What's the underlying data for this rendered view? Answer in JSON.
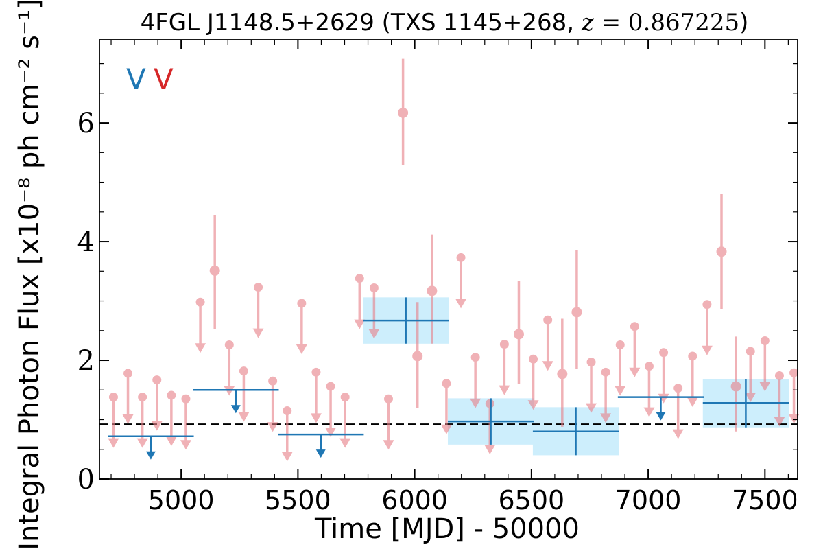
{
  "chart_data": {
    "type": "scatter",
    "title_main": "4FGL J1148.5+2629 (TXS 1145+268, ",
    "title_z_var": "z",
    "title_z_value": " = 0.867225",
    "title_close": ")",
    "xlabel": "Time [MJD] - 50000",
    "ylabel": "Integral Photon Flux [x10⁻⁸ ph cm⁻² s⁻¹]",
    "xlim": [
      4650,
      7640
    ],
    "ylim": [
      0,
      7.4
    ],
    "xticks": [
      5000,
      5500,
      6000,
      6500,
      7000,
      7500
    ],
    "yticks": [
      0,
      2,
      4,
      6
    ],
    "grid": false,
    "legend_marks": [
      {
        "label": "V",
        "color": "#1f77b4"
      },
      {
        "label": "V",
        "color": "#d62728"
      }
    ],
    "reference_level": 0.92,
    "colors": {
      "long_bin": "#1f77b4",
      "short_bin": "#e8828a",
      "band": "#cdeefc",
      "reference": "#000000"
    },
    "long_bins": [
      {
        "x": 4870,
        "x_err": 184,
        "y": 0.72,
        "upper_limit": true
      },
      {
        "x": 5234,
        "x_err": 184,
        "y": 1.5,
        "upper_limit": true
      },
      {
        "x": 5598,
        "x_err": 184,
        "y": 0.75,
        "upper_limit": true
      },
      {
        "x": 5962,
        "x_err": 184,
        "y": 2.67,
        "y_low": 2.28,
        "y_high": 3.06,
        "upper_limit": false
      },
      {
        "x": 6326,
        "x_err": 184,
        "y": 0.97,
        "y_low": 0.58,
        "y_high": 1.36,
        "upper_limit": false
      },
      {
        "x": 6690,
        "x_err": 184,
        "y": 0.8,
        "y_low": 0.4,
        "y_high": 1.21,
        "upper_limit": false
      },
      {
        "x": 7054,
        "x_err": 184,
        "y": 1.38,
        "upper_limit": true
      },
      {
        "x": 7418,
        "x_err": 184,
        "y": 1.28,
        "y_low": 0.87,
        "y_high": 1.68,
        "upper_limit": false
      }
    ],
    "short_bins": [
      {
        "x": 4710,
        "y": 1.38,
        "upper_limit": true
      },
      {
        "x": 4772,
        "y": 1.78,
        "upper_limit": true
      },
      {
        "x": 4834,
        "y": 1.38,
        "upper_limit": true
      },
      {
        "x": 4896,
        "y": 1.67,
        "upper_limit": true
      },
      {
        "x": 4958,
        "y": 1.41,
        "upper_limit": true
      },
      {
        "x": 5020,
        "y": 1.35,
        "upper_limit": true
      },
      {
        "x": 5082,
        "y": 2.98,
        "upper_limit": true
      },
      {
        "x": 5144,
        "y": 3.51,
        "y_low": 2.52,
        "y_high": 4.45,
        "upper_limit": false
      },
      {
        "x": 5206,
        "y": 2.26,
        "upper_limit": true
      },
      {
        "x": 5268,
        "y": 1.82,
        "upper_limit": true
      },
      {
        "x": 5330,
        "y": 3.23,
        "upper_limit": true
      },
      {
        "x": 5392,
        "y": 1.65,
        "upper_limit": true
      },
      {
        "x": 5454,
        "y": 1.15,
        "upper_limit": true
      },
      {
        "x": 5516,
        "y": 2.96,
        "upper_limit": true
      },
      {
        "x": 5578,
        "y": 1.8,
        "upper_limit": true
      },
      {
        "x": 5640,
        "y": 1.56,
        "upper_limit": true
      },
      {
        "x": 5702,
        "y": 1.38,
        "upper_limit": true
      },
      {
        "x": 5764,
        "y": 3.38,
        "upper_limit": true
      },
      {
        "x": 5826,
        "y": 3.22,
        "upper_limit": true
      },
      {
        "x": 5888,
        "y": 1.35,
        "upper_limit": true
      },
      {
        "x": 5950,
        "y": 6.17,
        "y_low": 5.29,
        "y_high": 7.08,
        "upper_limit": false
      },
      {
        "x": 6012,
        "y": 2.07,
        "y_low": 1.2,
        "y_high": 2.98,
        "upper_limit": false
      },
      {
        "x": 6074,
        "y": 3.17,
        "y_low": 2.28,
        "y_high": 4.12,
        "upper_limit": false
      },
      {
        "x": 6136,
        "y": 1.61,
        "upper_limit": true
      },
      {
        "x": 6198,
        "y": 3.73,
        "upper_limit": true
      },
      {
        "x": 6260,
        "y": 2.05,
        "upper_limit": true
      },
      {
        "x": 6322,
        "y": 1.27,
        "upper_limit": true
      },
      {
        "x": 6384,
        "y": 2.27,
        "upper_limit": true
      },
      {
        "x": 6446,
        "y": 2.44,
        "y_low": 1.6,
        "y_high": 3.33,
        "upper_limit": false
      },
      {
        "x": 6508,
        "y": 2.02,
        "upper_limit": true
      },
      {
        "x": 6570,
        "y": 2.68,
        "upper_limit": true
      },
      {
        "x": 6632,
        "y": 1.77,
        "y_low": 0.88,
        "y_high": 2.7,
        "upper_limit": false
      },
      {
        "x": 6694,
        "y": 2.81,
        "y_low": 1.85,
        "y_high": 3.86,
        "upper_limit": false
      },
      {
        "x": 6756,
        "y": 1.97,
        "upper_limit": true
      },
      {
        "x": 6818,
        "y": 1.8,
        "upper_limit": true
      },
      {
        "x": 6880,
        "y": 2.26,
        "upper_limit": true
      },
      {
        "x": 6942,
        "y": 2.57,
        "upper_limit": true
      },
      {
        "x": 7004,
        "y": 1.9,
        "upper_limit": true
      },
      {
        "x": 7066,
        "y": 2.13,
        "upper_limit": true
      },
      {
        "x": 7128,
        "y": 1.53,
        "upper_limit": true
      },
      {
        "x": 7190,
        "y": 2.07,
        "upper_limit": true
      },
      {
        "x": 7252,
        "y": 2.94,
        "upper_limit": true
      },
      {
        "x": 7314,
        "y": 3.83,
        "y_low": 2.86,
        "y_high": 4.8,
        "upper_limit": false
      },
      {
        "x": 7376,
        "y": 1.56,
        "y_low": 0.8,
        "y_high": 2.4,
        "upper_limit": false
      },
      {
        "x": 7438,
        "y": 2.15,
        "upper_limit": true
      },
      {
        "x": 7500,
        "y": 2.33,
        "upper_limit": true
      },
      {
        "x": 7562,
        "y": 1.74,
        "upper_limit": true
      },
      {
        "x": 7624,
        "y": 1.79,
        "upper_limit": true
      }
    ]
  }
}
